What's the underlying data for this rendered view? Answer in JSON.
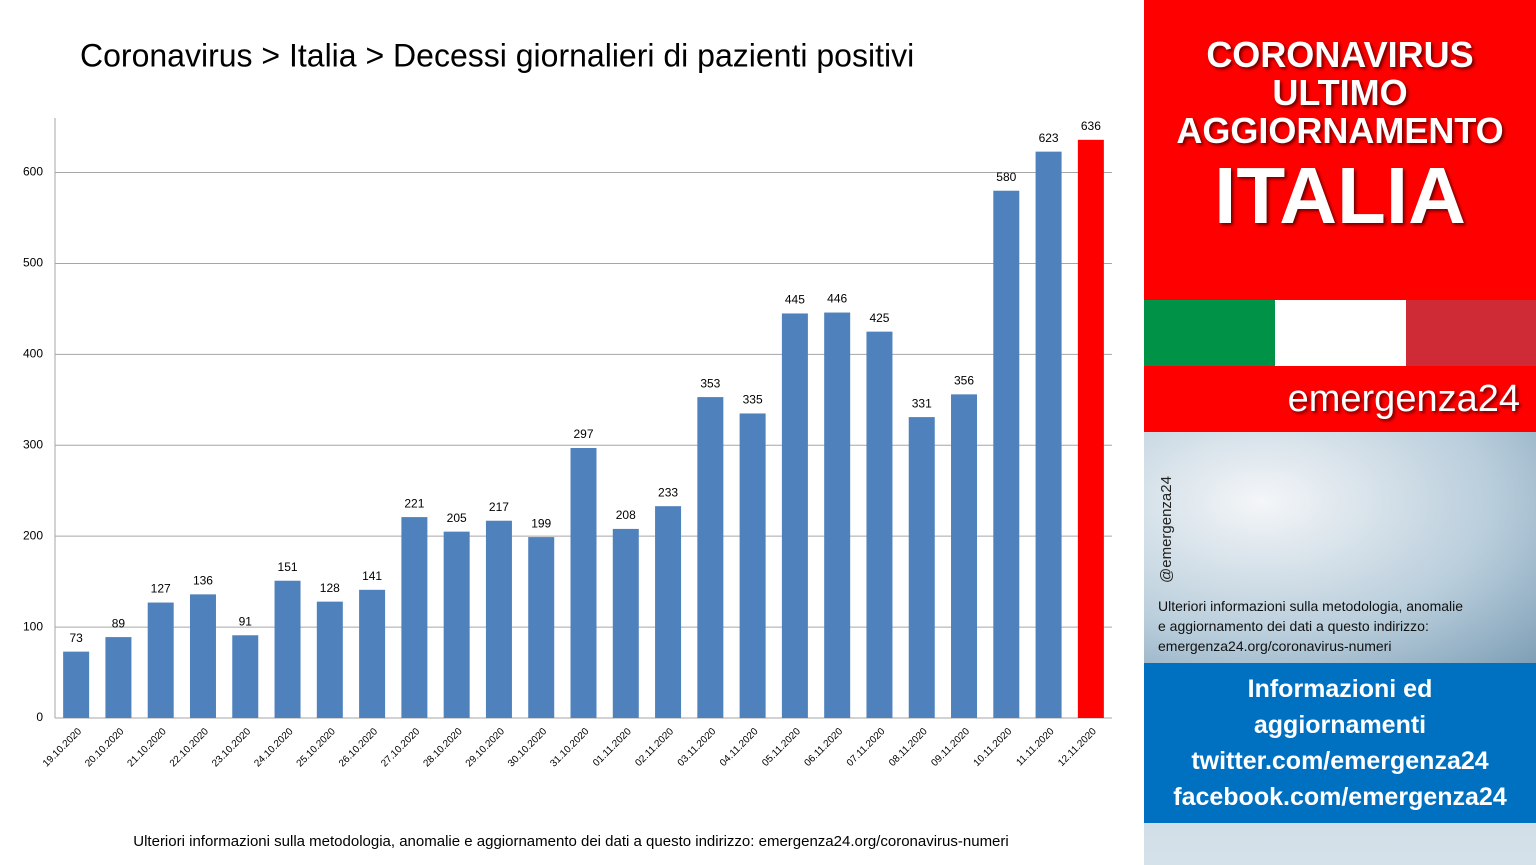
{
  "chart_data": {
    "type": "bar",
    "title": "Coronavirus > Italia > Decessi giornalieri di pazienti positivi",
    "categories": [
      "19.10.2020",
      "20.10.2020",
      "21.10.2020",
      "22.10.2020",
      "23.10.2020",
      "24.10.2020",
      "25.10.2020",
      "26.10.2020",
      "27.10.2020",
      "28.10.2020",
      "29.10.2020",
      "30.10.2020",
      "31.10.2020",
      "01.11.2020",
      "02.11.2020",
      "03.11.2020",
      "04.11.2020",
      "05.11.2020",
      "06.11.2020",
      "07.11.2020",
      "08.11.2020",
      "09.11.2020",
      "10.11.2020",
      "11.11.2020",
      "12.11.2020"
    ],
    "values": [
      73,
      89,
      127,
      136,
      91,
      151,
      128,
      141,
      221,
      205,
      217,
      199,
      297,
      208,
      233,
      353,
      335,
      445,
      446,
      425,
      331,
      356,
      580,
      623,
      636
    ],
    "colors": [
      "#4f81bd",
      "#4f81bd",
      "#4f81bd",
      "#4f81bd",
      "#4f81bd",
      "#4f81bd",
      "#4f81bd",
      "#4f81bd",
      "#4f81bd",
      "#4f81bd",
      "#4f81bd",
      "#4f81bd",
      "#4f81bd",
      "#4f81bd",
      "#4f81bd",
      "#4f81bd",
      "#4f81bd",
      "#4f81bd",
      "#4f81bd",
      "#4f81bd",
      "#4f81bd",
      "#4f81bd",
      "#4f81bd",
      "#4f81bd",
      "#ff0000"
    ],
    "ylim": [
      0,
      660
    ],
    "yticks": [
      0,
      100,
      200,
      300,
      400,
      500,
      600
    ],
    "grid": true,
    "footnote": "Ulteriori informazioni sulla metodologia, anomalie e aggiornamento dei dati a questo indirizzo: emergenza24.org/coronavirus-numeri"
  },
  "side_panel": {
    "heading": [
      "CORONAVIRUS",
      "ULTIMO",
      "AGGIORNAMENTO"
    ],
    "country": "ITALIA",
    "brand": "emergenza24",
    "handle": "@emergenza24",
    "info": [
      "Ulteriori informazioni sulla metodologia, anomalie",
      "e aggiornamento dei dati a questo indirizzo:",
      "emergenza24.org/coronavirus-numeri"
    ],
    "links": [
      "Informazioni ed",
      "aggiornamenti",
      "twitter.com/emergenza24",
      "facebook.com/emergenza24"
    ]
  }
}
